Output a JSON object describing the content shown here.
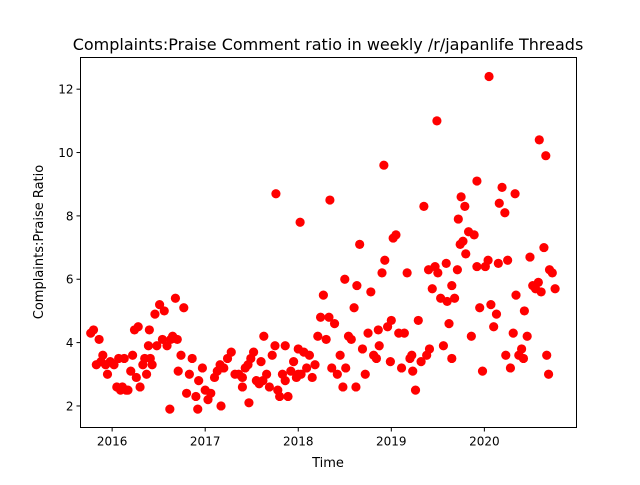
{
  "chart_data": {
    "type": "scatter",
    "title": "Complaints:Praise Comment ratio in weekly /r/japanlife Threads",
    "xlabel": "Time",
    "ylabel": "Complaints:Praise Ratio",
    "xlim": [
      2015.66,
      2020.99
    ],
    "ylim": [
      1.32,
      13.0
    ],
    "x_ticks": [
      2016,
      2017,
      2018,
      2019,
      2020
    ],
    "x_tick_labels": [
      "2016",
      "2017",
      "2018",
      "2019",
      "2020"
    ],
    "y_ticks": [
      2,
      4,
      6,
      8,
      10,
      12
    ],
    "y_tick_labels": [
      "2",
      "4",
      "6",
      "8",
      "10",
      "12"
    ],
    "grid": false,
    "marker_color": "#ff0000",
    "series": [
      {
        "x": [
          2015.77,
          2015.8,
          2015.83,
          2015.86,
          2015.88,
          2015.9,
          2015.93,
          2015.95,
          2015.98,
          2016.05,
          2016.07,
          2016.09,
          2016.11,
          2016.13,
          2016.15,
          2016.17,
          2016.2,
          2016.22,
          2016.24,
          2016.26,
          2016.28,
          2016.3,
          2016.33,
          2016.35,
          2016.37,
          2016.39,
          2016.41,
          2016.43,
          2016.46,
          2016.48,
          2016.51,
          2016.54,
          2016.56,
          2016.59,
          2016.63,
          2016.65,
          2016.68,
          2016.71,
          2016.74,
          2016.77,
          2016.8,
          2016.83,
          2016.86,
          2016.9,
          2016.93,
          2016.97,
          2017.0,
          2017.03,
          2017.06,
          2017.1,
          2017.13,
          2017.16,
          2017.2,
          2017.24,
          2017.28,
          2017.32,
          2017.36,
          2017.4,
          2017.43,
          2017.46,
          2017.49,
          2017.52,
          2017.55,
          2017.58,
          2017.6,
          2017.63,
          2017.66,
          2017.69,
          2017.72,
          2017.75,
          2017.78,
          2017.8,
          2017.83,
          2017.86,
          2017.89,
          2017.92,
          2017.95,
          2017.98,
          2018.0,
          2018.03,
          2018.06,
          2018.09,
          2018.12,
          2018.15,
          2018.18,
          2018.21,
          2018.24,
          2018.27,
          2018.3,
          2018.33,
          2018.36,
          2018.39,
          2018.42,
          2018.45,
          2018.48,
          2018.51,
          2018.54,
          2018.57,
          2018.6,
          2018.63,
          2018.66,
          2018.69,
          2018.72,
          2018.75,
          2018.78,
          2018.81,
          2018.84,
          2018.87,
          2018.9,
          2018.93,
          2018.96,
          2018.99,
          2019.02,
          2019.05,
          2019.08,
          2019.11,
          2019.14,
          2019.17,
          2019.2,
          2019.23,
          2019.26,
          2019.29,
          2019.32,
          2019.35,
          2019.38,
          2019.41,
          2019.44,
          2019.47,
          2019.5,
          2019.53,
          2019.56,
          2019.59,
          2019.62,
          2019.65,
          2019.68,
          2019.71,
          2019.74,
          2019.77,
          2019.8,
          2019.83,
          2019.86,
          2019.89,
          2019.92,
          2019.95,
          2019.98,
          2020.01,
          2020.04,
          2020.07,
          2020.1,
          2020.13,
          2020.16,
          2020.19,
          2020.22,
          2020.25,
          2020.28,
          2020.31,
          2020.34,
          2020.37,
          2020.4,
          2020.43,
          2020.46,
          2020.49,
          2020.52,
          2020.55,
          2020.58,
          2020.61,
          2020.64,
          2020.67,
          2020.7,
          2020.73,
          2020.76,
          2016.62,
          2016.92,
          2017.17,
          2017.47,
          2017.76,
          2018.02,
          2018.34,
          2018.62,
          2018.92,
          2019.22,
          2019.49,
          2019.79,
          2020.05,
          2020.33,
          2020.59,
          2016.4,
          2017.62,
          2018.86,
          2019.4,
          2019.65,
          2019.92,
          2020.23,
          2020.42,
          2020.66,
          2020.69,
          2016.02,
          2016.7,
          2017.4,
          2017.86,
          2018.0,
          2018.5,
          2019.0,
          2019.6,
          2019.72,
          2019.75,
          2020.15
        ],
        "y": [
          4.3,
          4.4,
          3.3,
          4.1,
          3.4,
          3.6,
          3.3,
          3.0,
          3.4,
          2.6,
          3.5,
          2.5,
          2.6,
          3.5,
          2.5,
          2.5,
          3.1,
          3.6,
          4.4,
          2.9,
          4.5,
          2.6,
          3.3,
          3.5,
          3.0,
          3.9,
          3.5,
          3.3,
          4.9,
          3.9,
          5.2,
          4.1,
          5.0,
          3.9,
          4.1,
          4.2,
          5.4,
          3.1,
          3.6,
          5.1,
          2.4,
          3.0,
          3.5,
          2.3,
          2.8,
          3.2,
          2.5,
          2.2,
          2.4,
          2.9,
          3.1,
          3.3,
          3.2,
          3.5,
          3.7,
          3.0,
          3.0,
          2.9,
          3.2,
          3.3,
          3.5,
          3.7,
          2.8,
          2.7,
          3.4,
          4.2,
          3.0,
          2.6,
          3.6,
          3.9,
          2.5,
          2.3,
          3.0,
          2.8,
          2.3,
          3.1,
          3.4,
          2.9,
          3.8,
          3.0,
          3.7,
          3.2,
          3.6,
          2.9,
          3.3,
          4.2,
          4.8,
          5.5,
          4.1,
          4.8,
          3.2,
          4.6,
          3.0,
          3.6,
          2.6,
          3.2,
          4.2,
          4.1,
          5.1,
          5.8,
          7.1,
          3.8,
          3.0,
          4.3,
          5.6,
          3.6,
          3.5,
          3.9,
          6.2,
          6.6,
          4.5,
          3.4,
          7.3,
          7.4,
          4.3,
          3.2,
          4.3,
          6.2,
          3.5,
          3.1,
          2.5,
          4.7,
          3.4,
          8.3,
          3.6,
          3.8,
          5.7,
          6.4,
          6.2,
          5.4,
          3.9,
          6.5,
          4.6,
          5.8,
          5.4,
          6.3,
          7.1,
          7.2,
          6.8,
          7.5,
          4.2,
          7.4,
          6.4,
          5.1,
          3.1,
          6.4,
          6.6,
          5.2,
          4.5,
          4.9,
          8.4,
          8.9,
          8.1,
          6.6,
          3.2,
          4.3,
          5.5,
          3.6,
          3.8,
          5.0,
          4.2,
          6.7,
          5.8,
          5.7,
          5.9,
          5.6,
          7.0,
          3.6,
          6.3,
          6.2,
          5.7,
          1.9,
          1.9,
          2.0,
          2.1,
          8.7,
          7.8,
          8.5,
          2.6,
          9.6,
          3.6,
          11.0,
          8.3,
          12.4,
          8.7,
          10.4,
          4.4,
          2.8,
          4.4,
          6.3,
          3.5,
          9.1,
          3.6,
          3.5,
          9.9,
          3.0,
          3.3,
          4.1,
          2.6,
          3.9,
          3.0,
          6.0,
          4.7,
          5.3,
          7.9,
          8.6,
          6.5
        ]
      }
    ]
  }
}
